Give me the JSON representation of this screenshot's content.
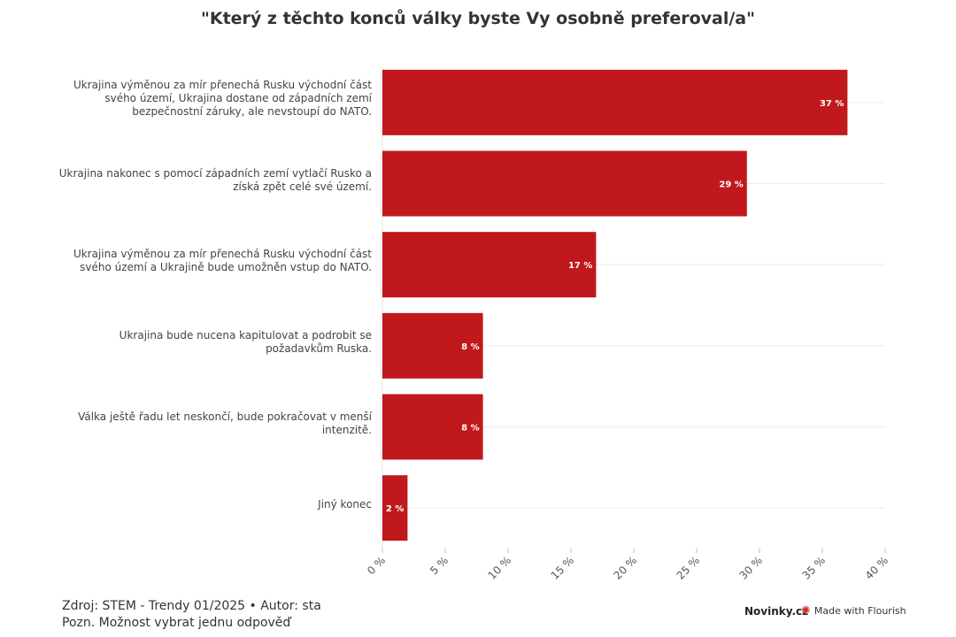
{
  "chart_data": {
    "type": "bar",
    "orientation": "horizontal",
    "title": "\"Který z těchto konců války byste Vy osobně preferoval/a\"",
    "categories": [
      "Ukrajina výměnou za mír přenechá Rusku východní část svého území, Ukrajina dostane od západních zemí bezpečnostní záruky, ale nevstoupí do NATO.",
      "Ukrajina nakonec s pomocí západních zemí vytlačí Rusko a získá zpět celé své území.",
      "Ukrajina výměnou za mír přenechá Rusku východní část svého území a Ukrajině bude umožněn vstup do NATO.",
      "Ukrajina bude nucena kapitulovat a podrobit se požadavkům Ruska.",
      "Válka ještě řadu let neskončí, bude pokračovat v menší intenzitě.",
      "Jiný konec"
    ],
    "category_lines": [
      [
        "Ukrajina výměnou za mír přenechá Rusku východní část",
        "svého území, Ukrajina dostane od západních zemí",
        "bezpečnostní záruky, ale nevstoupí do NATO."
      ],
      [
        "Ukrajina nakonec s pomocí západních zemí vytlačí Rusko a",
        "získá zpět celé své území."
      ],
      [
        "Ukrajina výměnou za mír přenechá Rusku východní část",
        "svého území a Ukrajině bude umožněn vstup do NATO."
      ],
      [
        "Ukrajina bude nucena kapitulovat a podrobit se",
        "požadavkům Ruska."
      ],
      [
        "Válka ještě řadu let neskončí, bude pokračovat v menší",
        "intenzitě."
      ],
      [
        "Jiný konec"
      ]
    ],
    "values": [
      37,
      29,
      17,
      8,
      8,
      2
    ],
    "value_labels": [
      "37 %",
      "29 %",
      "17 %",
      "8 %",
      "8 %",
      "2 %"
    ],
    "xlim": [
      0,
      40
    ],
    "x_ticks": [
      0,
      5,
      10,
      15,
      20,
      25,
      30,
      35,
      40
    ],
    "x_tick_labels": [
      "0 %",
      "5 %",
      "10 %",
      "15 %",
      "20 %",
      "25 %",
      "30 %",
      "35 %",
      "40 %"
    ],
    "bar_color": "#c0181d",
    "grid": true
  },
  "footer": {
    "source": "Zdroj: STEM - Trendy 01/2025 • Autor: sta",
    "note": "Pozn. Možnost vybrat jednu odpověď",
    "brand": "Novinky.cz",
    "made_with": "Made with Flourish"
  }
}
